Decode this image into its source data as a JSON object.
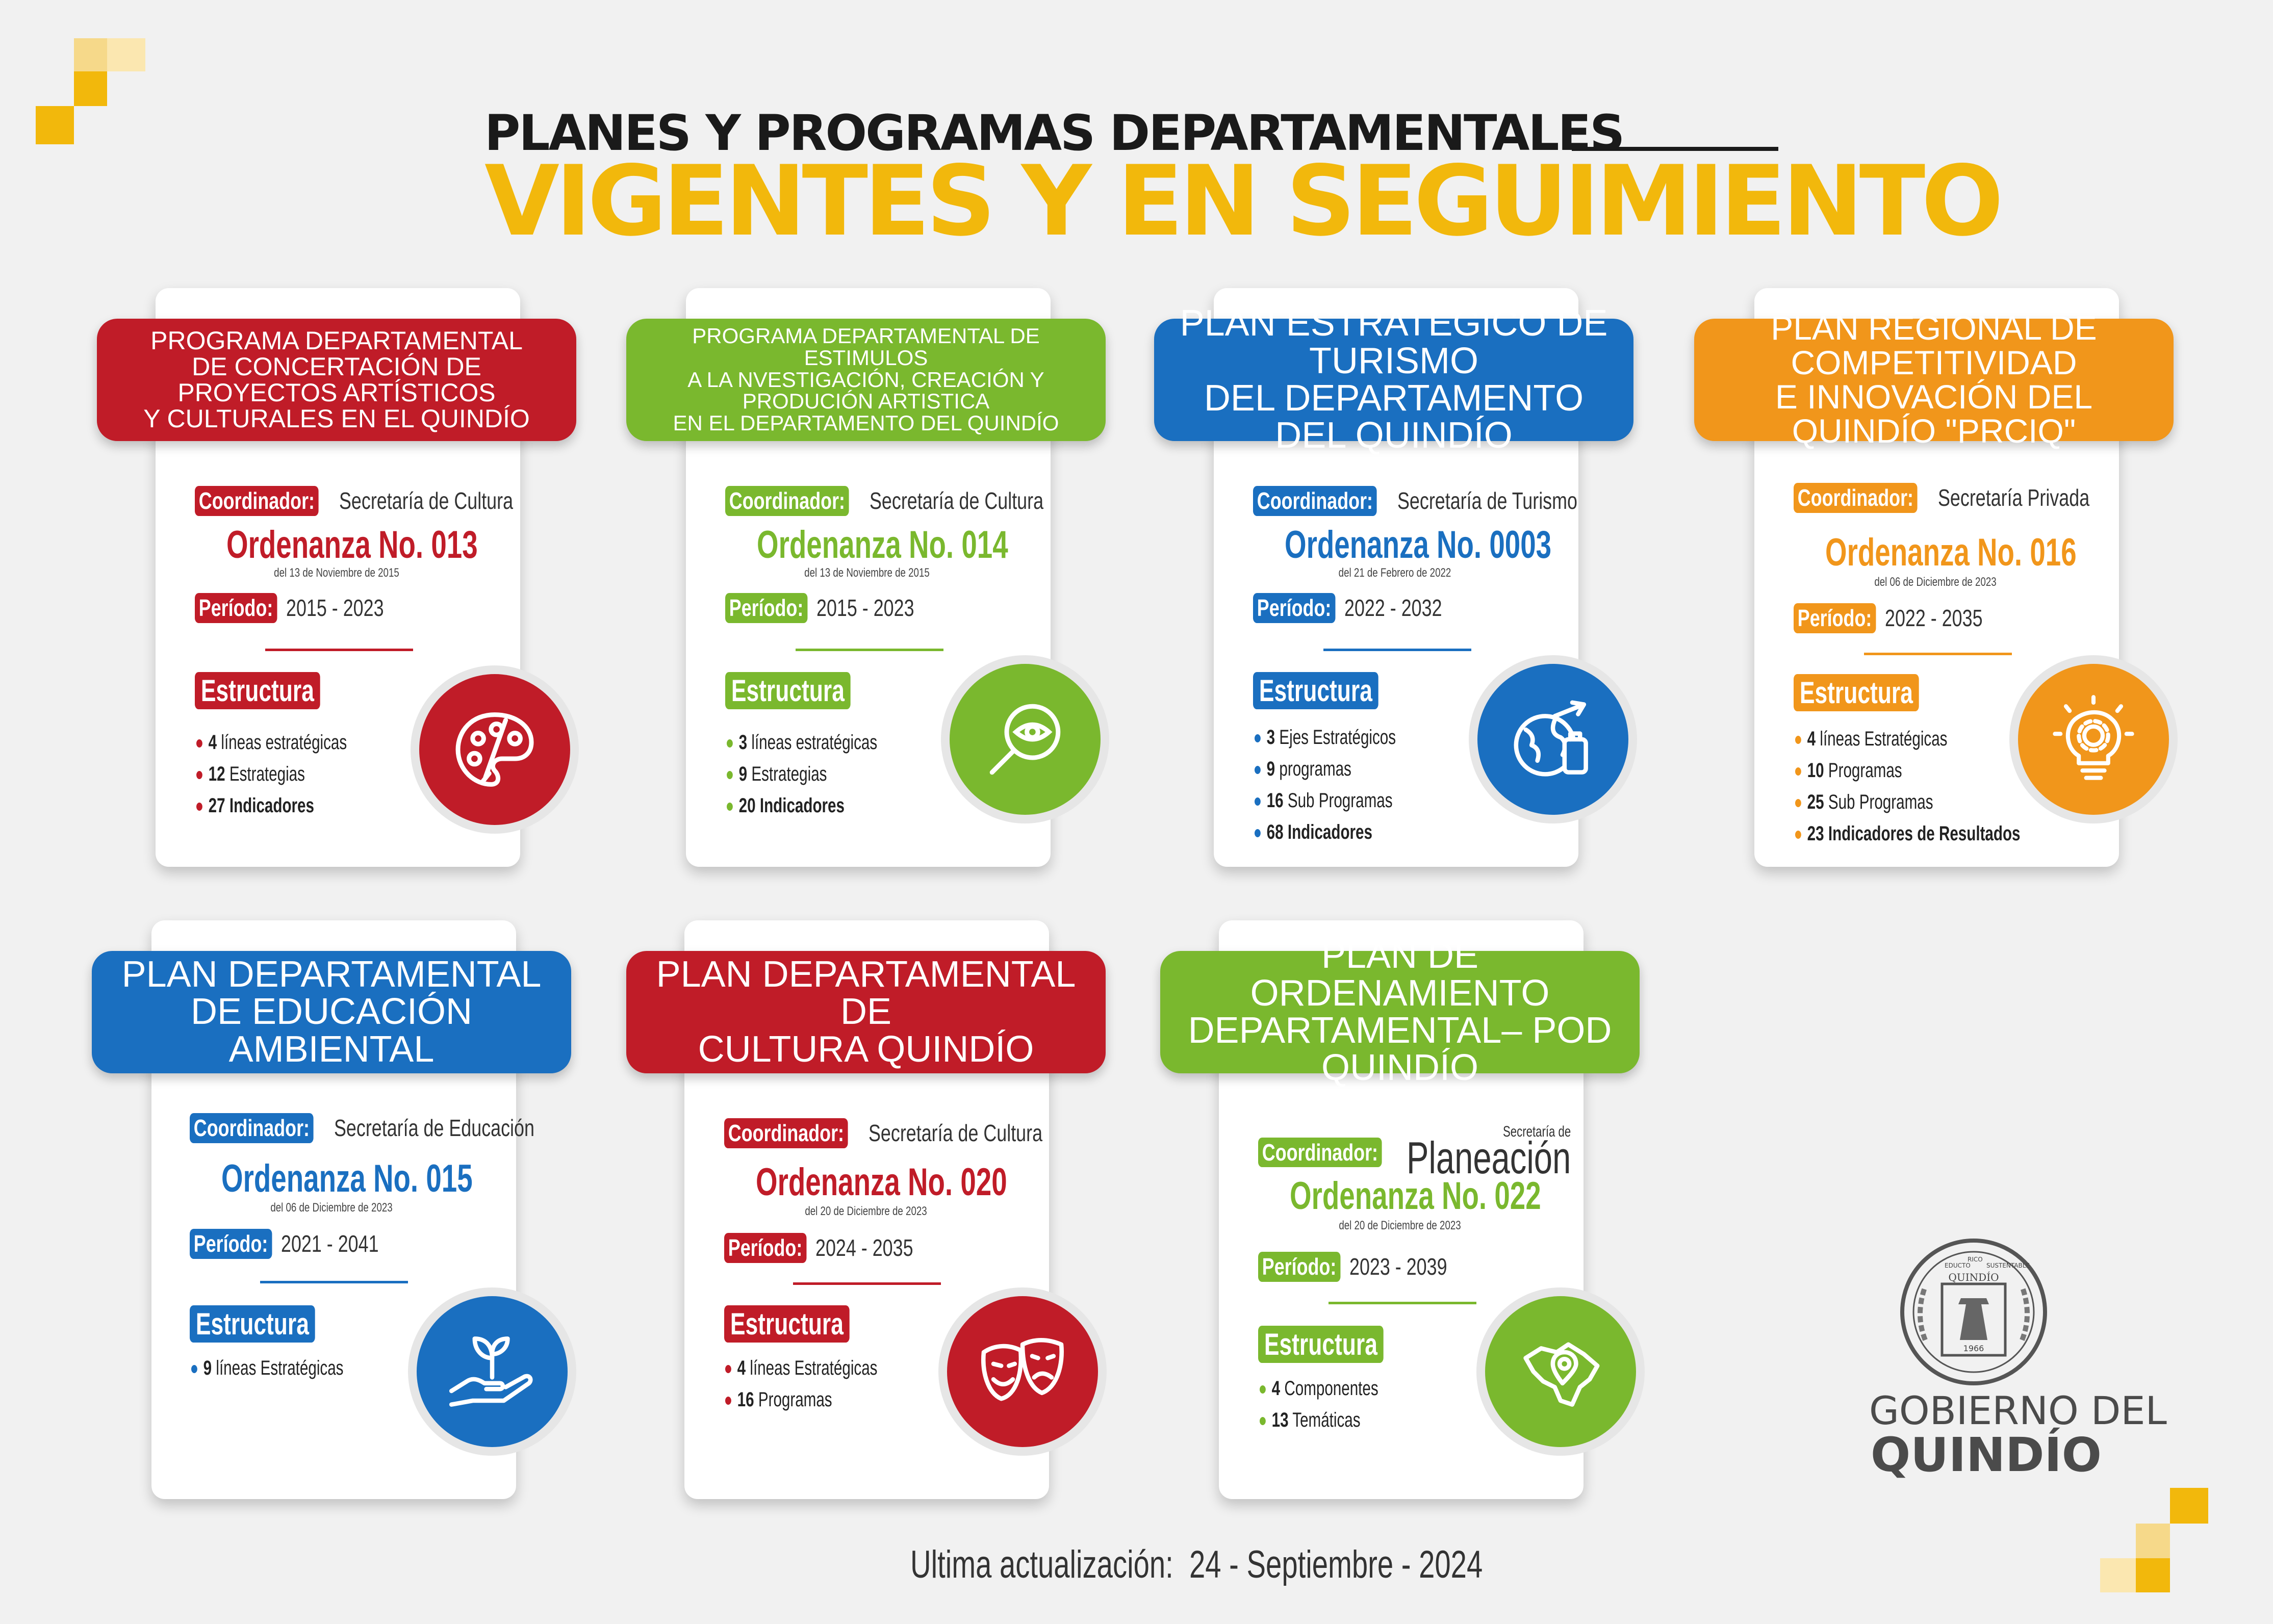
{
  "header": {
    "line1": "PLANES Y PROGRAMAS DEPARTAMENTALES",
    "line2": "VIGENTES Y EN SEGUIMIENTO"
  },
  "colors": {
    "red": "#c01c28",
    "green": "#7ab82e",
    "blue": "#1a6fc0",
    "orange": "#f1961b",
    "yellow": "#f2b80c"
  },
  "labels": {
    "coordinador": "Coordinador:",
    "periodo": "Período:",
    "estructura": "Estructura"
  },
  "cards": [
    {
      "title": [
        "PROGRAMA DEPARTAMENTAL",
        "DE CONCERTACIÓN DE PROYECTOS ARTÍSTICOS",
        "Y CULTURALES EN EL QUINDÍO"
      ],
      "coordinador": "Secretaría de Cultura",
      "ordenanza": "Ordenanza No. 013",
      "fecha": "del 13 de Noviembre de 2015",
      "periodo": "2015 - 2023",
      "items": [
        [
          "4",
          "líneas estratégicas"
        ],
        [
          "12",
          "Estrategias"
        ],
        [
          "27",
          "Indicadores"
        ]
      ],
      "icon": "palette-icon"
    },
    {
      "title": [
        "PROGRAMA DEPARTAMENTAL DE ESTIMULOS",
        "A LA NVESTIGACIÓN, CREACIÓN Y PRODUCIÓN ARTISTICA",
        "EN EL DEPARTAMENTO DEL QUINDÍO"
      ],
      "coordinador": "Secretaría de Cultura",
      "ordenanza": "Ordenanza No. 014",
      "fecha": "del 13 de Noviembre de 2015",
      "periodo": "2015 - 2023",
      "items": [
        [
          "3",
          "líneas estratégicas"
        ],
        [
          "9",
          "Estrategias"
        ],
        [
          "20",
          "Indicadores"
        ]
      ],
      "icon": "magnifier-eye-icon"
    },
    {
      "title": [
        "PLAN ESTRATÉGICO DE TURISMO",
        "DEL DEPARTAMENTO DEL QUINDÍO"
      ],
      "coordinador": "Secretaría de Turismo",
      "ordenanza": "Ordenanza No. 0003",
      "fecha": "del 21 de Febrero de 2022",
      "periodo": "2022 - 2032",
      "items": [
        [
          "3",
          "Ejes Estratégicos"
        ],
        [
          "9",
          "programas"
        ],
        [
          "16",
          "Sub Programas"
        ],
        [
          "68",
          "Indicadores"
        ]
      ],
      "icon": "globe-travel-icon"
    },
    {
      "title": [
        "PLAN REGIONAL DE COMPETITIVIDAD",
        "E INNOVACIÓN DEL QUINDÍO \"PRCIQ\""
      ],
      "coordinador": "Secretaría Privada",
      "ordenanza": "Ordenanza No. 016",
      "fecha": "del 06 de Diciembre de 2023",
      "periodo": "2022 - 2035",
      "items": [
        [
          "4",
          "líneas Estratégicas"
        ],
        [
          "10",
          "Programas"
        ],
        [
          "25",
          "Sub Programas"
        ],
        [
          "23",
          "Indicadores de Resultados"
        ]
      ],
      "icon": "lightbulb-gear-icon"
    },
    {
      "title": [
        "PLAN DEPARTAMENTAL",
        "DE EDUCACIÓN AMBIENTAL"
      ],
      "coordinador": "Secretaría de Educación",
      "ordenanza": "Ordenanza No. 015",
      "fecha": "del 06 de Diciembre de 2023",
      "periodo": "2021 - 2041",
      "items": [
        [
          "9",
          "líneas Estratégicas"
        ]
      ],
      "icon": "hand-plant-icon"
    },
    {
      "title": [
        "PLAN DEPARTAMENTAL DE",
        "CULTURA QUINDÍO"
      ],
      "coordinador": "Secretaría de Cultura",
      "ordenanza": "Ordenanza No. 020",
      "fecha": "del 20 de Diciembre de 2023",
      "periodo": "2024 - 2035",
      "items": [
        [
          "4",
          "líneas Estratégicas"
        ],
        [
          "16",
          "Programas"
        ]
      ],
      "icon": "theater-masks-icon"
    },
    {
      "title": [
        "PLAN DE ORDENAMIENTO",
        "DEPARTAMENTAL– POD QUINDÍO"
      ],
      "coordinador_small": "Secretaría de",
      "coordinador": "Planeación",
      "ordenanza": "Ordenanza No. 022",
      "fecha": "del 20 de Diciembre de 2023",
      "periodo": "2023 - 2039",
      "items": [
        [
          "4",
          "Componentes"
        ],
        [
          "13",
          "Temáticas"
        ]
      ],
      "icon": "map-pin-icon"
    }
  ],
  "footer": {
    "label": "Ultima actualización:",
    "date": "24 - Septiembre - 2024"
  },
  "logo": {
    "line1": "GOBIERNO DEL",
    "line2": "QUINDÍO",
    "seal_text": "QUINDÍO",
    "seal_motto": [
      "EDUCTO",
      "RICO",
      "SUSTENTABLE"
    ],
    "seal_year": "1966"
  }
}
